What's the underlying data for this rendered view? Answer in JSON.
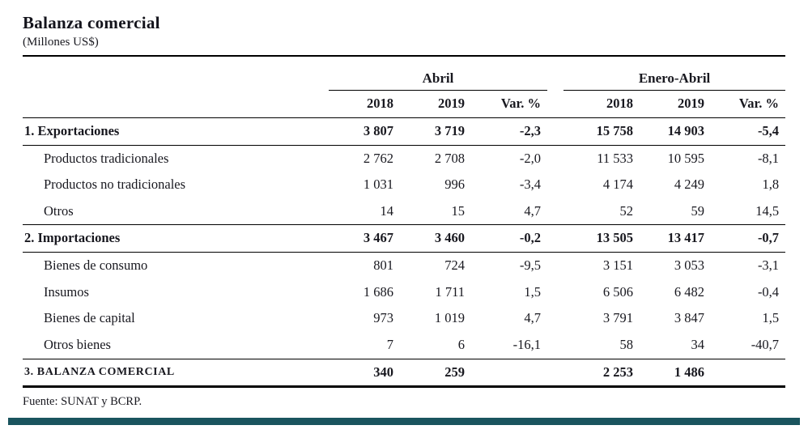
{
  "page": {
    "title": "Balanza comercial",
    "subtitle": "(Millones US$)",
    "source": "Fuente: SUNAT y BCRP."
  },
  "colors": {
    "accent_bar": "#1a545e",
    "rule": "#000000",
    "text": "#18181f"
  },
  "table": {
    "col_groups": [
      {
        "label": "Abril"
      },
      {
        "label": "Enero-Abril"
      }
    ],
    "col_headers": [
      "2018",
      "2019",
      "Var. %",
      "2018",
      "2019",
      "Var. %"
    ],
    "rows": [
      {
        "label": "1. Exportaciones",
        "values": [
          "3 807",
          "3 719",
          "-2,3",
          "15 758",
          "14 903",
          "-5,4"
        ]
      },
      {
        "label": "Productos tradicionales",
        "values": [
          "2 762",
          "2 708",
          "-2,0",
          "11 533",
          "10 595",
          "-8,1"
        ]
      },
      {
        "label": "Productos no tradicionales",
        "values": [
          "1 031",
          "996",
          "-3,4",
          "4 174",
          "4 249",
          "1,8"
        ]
      },
      {
        "label": "Otros",
        "values": [
          "14",
          "15",
          "4,7",
          "52",
          "59",
          "14,5"
        ]
      },
      {
        "label": "2. Importaciones",
        "values": [
          "3 467",
          "3 460",
          "-0,2",
          "13 505",
          "13 417",
          "-0,7"
        ]
      },
      {
        "label": "Bienes de consumo",
        "values": [
          "801",
          "724",
          "-9,5",
          "3 151",
          "3 053",
          "-3,1"
        ]
      },
      {
        "label": "Insumos",
        "values": [
          "1 686",
          "1 711",
          "1,5",
          "6 506",
          "6 482",
          "-0,4"
        ]
      },
      {
        "label": "Bienes de capital",
        "values": [
          "973",
          "1 019",
          "4,7",
          "3 791",
          "3 847",
          "1,5"
        ]
      },
      {
        "label": "Otros bienes",
        "values": [
          "7",
          "6",
          "-16,1",
          "58",
          "34",
          "-40,7"
        ]
      },
      {
        "label": "3. BALANZA  COMERCIAL",
        "values": [
          "340",
          "259",
          "",
          "2 253",
          "1 486",
          ""
        ]
      }
    ]
  }
}
